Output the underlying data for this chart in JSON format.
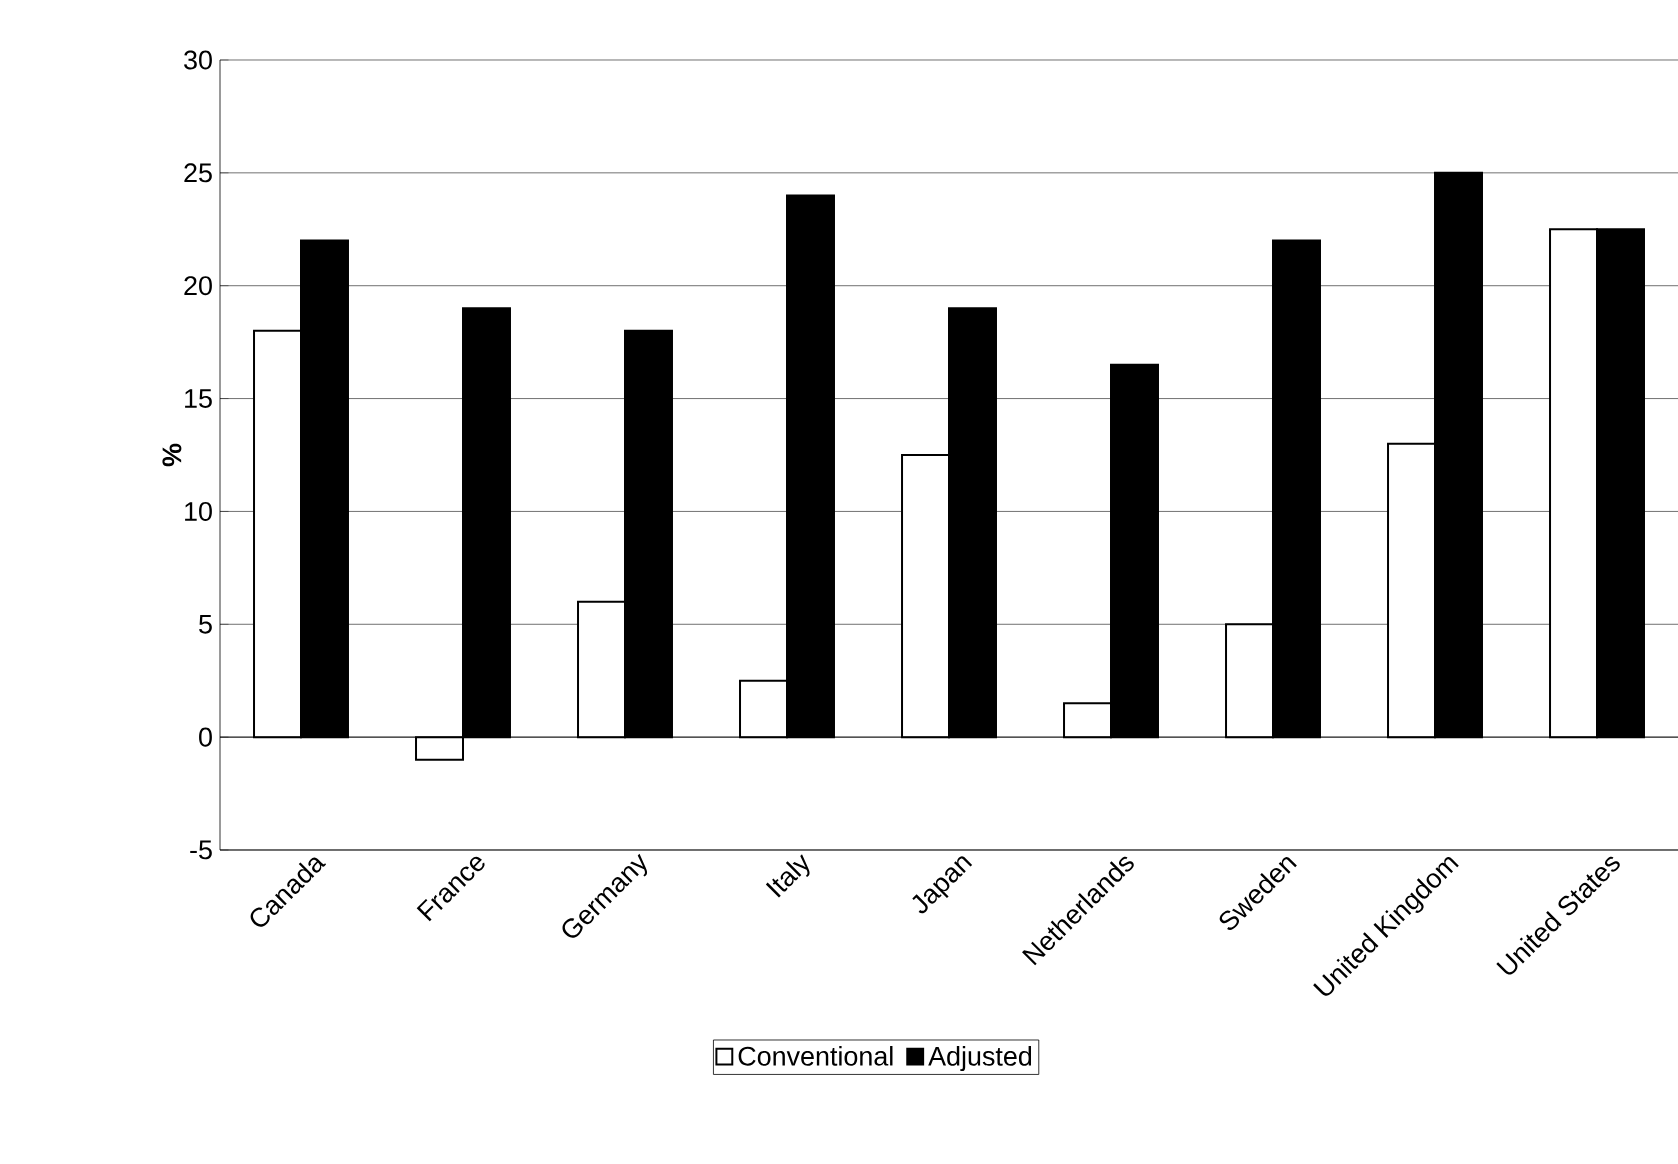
{
  "chart_data": {
    "type": "bar",
    "ylabel": "%",
    "categories": [
      "Canada",
      "France",
      "Germany",
      "Italy",
      "Japan",
      "Netherlands",
      "Sweden",
      "United Kingdom",
      "United States"
    ],
    "series": [
      {
        "name": "Conventional",
        "color": "#ffffff",
        "values": [
          18,
          -1,
          6,
          2.5,
          12.5,
          1.5,
          5,
          13,
          22.5
        ]
      },
      {
        "name": "Adjusted",
        "color": "#000000",
        "values": [
          22,
          19,
          18,
          24,
          19,
          16.5,
          22,
          25,
          22.5
        ]
      }
    ],
    "ylim": [
      -5,
      30
    ],
    "yticks": [
      -5,
      0,
      5,
      10,
      15,
      20,
      25,
      30
    ],
    "grid": "y",
    "legend": "bottom"
  }
}
